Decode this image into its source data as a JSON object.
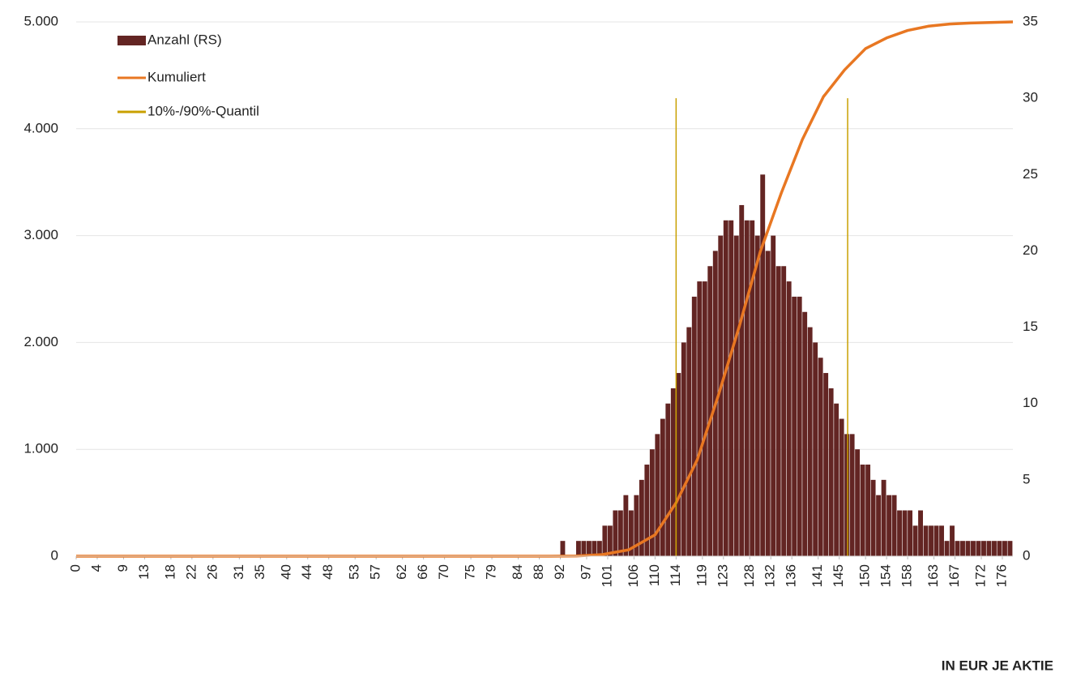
{
  "chart_data": {
    "type": "histogram",
    "x_label": "IN EUR JE AKTIE",
    "xlim": [
      0,
      178
    ],
    "xticks": [
      0,
      4,
      9,
      13,
      18,
      22,
      26,
      31,
      35,
      40,
      44,
      48,
      53,
      57,
      62,
      66,
      70,
      75,
      79,
      84,
      88,
      92,
      97,
      101,
      106,
      110,
      114,
      119,
      123,
      128,
      132,
      136,
      141,
      145,
      150,
      154,
      158,
      163,
      167,
      172,
      176
    ],
    "ylim": [
      0,
      5000
    ],
    "yticks": [
      0,
      {
        "value": 1000,
        "label": "1.000"
      },
      {
        "value": 2000,
        "label": "2.000"
      },
      {
        "value": 3000,
        "label": "3.000"
      },
      {
        "value": 4000,
        "label": "4.000"
      },
      {
        "value": 5000,
        "label": "5.000"
      }
    ],
    "y2lim": [
      0,
      35
    ],
    "y2ticks": [
      0,
      5,
      10,
      15,
      20,
      25,
      30,
      35
    ],
    "grid": true,
    "legend": "top-left",
    "series": [
      {
        "name": "Anzahl (RS)",
        "type": "bar",
        "axis": "y2",
        "color": "#632523",
        "bins": [
          92,
          93,
          94,
          95,
          96,
          97,
          98,
          99,
          100,
          101,
          102,
          103,
          104,
          105,
          106,
          107,
          108,
          109,
          110,
          111,
          112,
          113,
          114,
          115,
          116,
          117,
          118,
          119,
          120,
          121,
          122,
          123,
          124,
          125,
          126,
          127,
          128,
          129,
          130,
          131,
          132,
          133,
          134,
          135,
          136,
          137,
          138,
          139,
          140,
          141,
          142,
          143,
          144,
          145,
          146,
          147,
          148,
          149,
          150,
          151,
          152,
          153,
          154,
          155,
          156,
          157,
          158,
          159,
          160,
          161,
          162,
          163,
          164,
          165,
          166,
          167,
          168,
          169,
          170,
          171,
          172,
          173,
          174,
          175,
          176,
          177,
          178
        ],
        "values": [
          1,
          0,
          0,
          1,
          1,
          1,
          1,
          1,
          2,
          2,
          3,
          3,
          4,
          3,
          4,
          5,
          6,
          7,
          8,
          9,
          10,
          11,
          12,
          14,
          15,
          17,
          18,
          18,
          19,
          20,
          21,
          22,
          22,
          21,
          23,
          22,
          22,
          21,
          25,
          20,
          21,
          19,
          19,
          18,
          17,
          17,
          16,
          15,
          14,
          13,
          12,
          11,
          10,
          9,
          8,
          8,
          7,
          6,
          6,
          5,
          4,
          5,
          4,
          4,
          3,
          3,
          3,
          2,
          3,
          2,
          2,
          2,
          2,
          1,
          2,
          1,
          1,
          1,
          1,
          1,
          1,
          1,
          1,
          1,
          1,
          1
        ]
      },
      {
        "name": "Kumuliert",
        "type": "line",
        "color": "#e87722",
        "x": [
          0,
          90,
          95,
          100,
          105,
          110,
          114,
          118,
          122,
          126,
          130,
          134,
          138,
          142,
          146,
          150,
          154,
          158,
          162,
          166,
          170,
          178
        ],
        "values": [
          0,
          0,
          2,
          15,
          60,
          200,
          500,
          900,
          1500,
          2150,
          2850,
          3400,
          3900,
          4300,
          4550,
          4750,
          4850,
          4920,
          4960,
          4980,
          4990,
          5000
        ]
      },
      {
        "name": "10%-/90%-Quantil",
        "type": "vline",
        "axis": "y2",
        "color": "#c9a000",
        "x": [
          114,
          146.6
        ],
        "values": [
          30,
          30
        ]
      }
    ]
  }
}
